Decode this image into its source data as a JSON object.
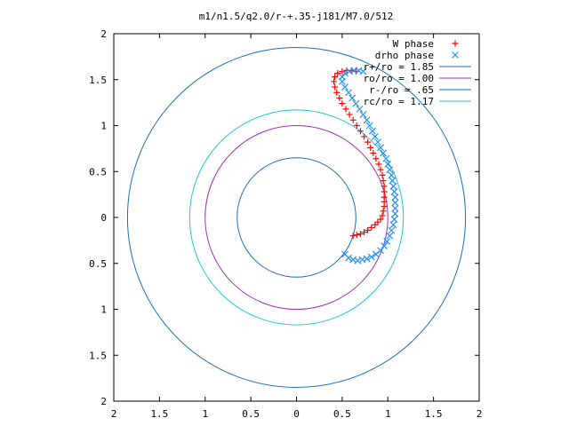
{
  "chart_data": {
    "type": "scatter",
    "title": "m1/n1.5/q2.0/r-+.35-j181/M7.0/512",
    "xlabel": "",
    "ylabel": "",
    "xlim": [
      -2,
      2
    ],
    "ylim": [
      -2,
      2
    ],
    "x_tick_values": [
      -2,
      -1.5,
      -1,
      -0.5,
      0,
      0.5,
      1,
      1.5,
      2
    ],
    "x_tick_labels": [
      "2",
      "1.5",
      "1",
      "0.5",
      "0",
      "0.5",
      "1",
      "1.5",
      "2"
    ],
    "y_tick_values": [
      2,
      1.5,
      1,
      0.5,
      0,
      -0.5,
      -1,
      -1.5,
      -2
    ],
    "y_tick_labels": [
      "2",
      "1.5",
      "1",
      "0.5",
      "0",
      "0.5",
      "1",
      "1.5",
      "2"
    ],
    "grid": false,
    "legend_position": "top-right",
    "circles": [
      {
        "name": "r+/ro = 1.85",
        "radius": 1.85,
        "color": "#1a6fba"
      },
      {
        "name": "ro/ro = 1.00",
        "radius": 1.0,
        "color": "#a030b8"
      },
      {
        "name": "r-/ro = .65",
        "radius": 0.65,
        "color": "#1a6fba"
      },
      {
        "name": "rc/ro = 1.17",
        "radius": 1.17,
        "color": "#20c8d0"
      }
    ],
    "series": [
      {
        "name": "W phase",
        "marker": "plus",
        "color": "#ff0000",
        "points": [
          [
            0.62,
            -0.2
          ],
          [
            0.66,
            -0.19
          ],
          [
            0.7,
            -0.18
          ],
          [
            0.74,
            -0.16
          ],
          [
            0.78,
            -0.14
          ],
          [
            0.82,
            -0.11
          ],
          [
            0.86,
            -0.08
          ],
          [
            0.89,
            -0.05
          ],
          [
            0.92,
            -0.02
          ],
          [
            0.94,
            0.02
          ],
          [
            0.95,
            0.07
          ],
          [
            0.96,
            0.12
          ],
          [
            0.96,
            0.17
          ],
          [
            0.96,
            0.22
          ],
          [
            0.96,
            0.28
          ],
          [
            0.96,
            0.34
          ],
          [
            0.95,
            0.4
          ],
          [
            0.94,
            0.46
          ],
          [
            0.92,
            0.52
          ],
          [
            0.9,
            0.58
          ],
          [
            0.87,
            0.64
          ],
          [
            0.84,
            0.7
          ],
          [
            0.81,
            0.76
          ],
          [
            0.78,
            0.82
          ],
          [
            0.74,
            0.88
          ],
          [
            0.7,
            0.94
          ],
          [
            0.66,
            1.0
          ],
          [
            0.62,
            1.06
          ],
          [
            0.58,
            1.12
          ],
          [
            0.54,
            1.18
          ],
          [
            0.5,
            1.24
          ],
          [
            0.47,
            1.3
          ],
          [
            0.44,
            1.36
          ],
          [
            0.42,
            1.42
          ],
          [
            0.41,
            1.48
          ],
          [
            0.42,
            1.53
          ],
          [
            0.45,
            1.57
          ],
          [
            0.5,
            1.59
          ],
          [
            0.55,
            1.6
          ],
          [
            0.6,
            1.6
          ],
          [
            0.65,
            1.59
          ]
        ]
      },
      {
        "name": "drho phase",
        "marker": "cross",
        "color": "#1e90ff",
        "points": [
          [
            0.53,
            -0.4
          ],
          [
            0.57,
            -0.44
          ],
          [
            0.62,
            -0.46
          ],
          [
            0.67,
            -0.47
          ],
          [
            0.72,
            -0.46
          ],
          [
            0.77,
            -0.45
          ],
          [
            0.82,
            -0.43
          ],
          [
            0.87,
            -0.4
          ],
          [
            0.92,
            -0.36
          ],
          [
            0.96,
            -0.31
          ],
          [
            0.99,
            -0.26
          ],
          [
            1.02,
            -0.2
          ],
          [
            1.04,
            -0.14
          ],
          [
            1.06,
            -0.08
          ],
          [
            1.07,
            -0.02
          ],
          [
            1.08,
            0.04
          ],
          [
            1.08,
            0.1
          ],
          [
            1.08,
            0.16
          ],
          [
            1.08,
            0.22
          ],
          [
            1.07,
            0.28
          ],
          [
            1.06,
            0.34
          ],
          [
            1.05,
            0.4
          ],
          [
            1.04,
            0.46
          ],
          [
            1.02,
            0.52
          ],
          [
            1.0,
            0.58
          ],
          [
            0.98,
            0.64
          ],
          [
            0.95,
            0.7
          ],
          [
            0.92,
            0.76
          ],
          [
            0.89,
            0.82
          ],
          [
            0.86,
            0.88
          ],
          [
            0.83,
            0.94
          ],
          [
            0.8,
            1.0
          ],
          [
            0.77,
            1.06
          ],
          [
            0.73,
            1.12
          ],
          [
            0.69,
            1.18
          ],
          [
            0.65,
            1.24
          ],
          [
            0.61,
            1.3
          ],
          [
            0.57,
            1.36
          ],
          [
            0.53,
            1.42
          ],
          [
            0.5,
            1.48
          ],
          [
            0.5,
            1.53
          ],
          [
            0.53,
            1.57
          ],
          [
            0.58,
            1.59
          ],
          [
            0.63,
            1.6
          ],
          [
            0.68,
            1.6
          ],
          [
            0.73,
            1.59
          ]
        ]
      }
    ]
  }
}
